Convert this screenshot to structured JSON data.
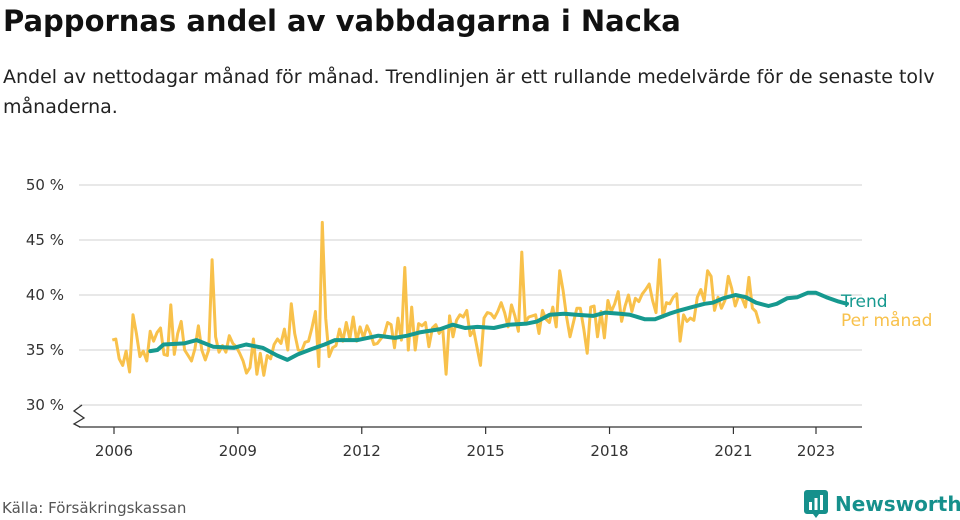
{
  "title": "Pappornas andel av vabbdagarna i Nacka",
  "subtitle": "Andel av nettodagar månad för månad. Trendlinjen är ett rullande medelvärde för de senaste tolv månaderna.",
  "source": "Källa: Försäkringskassan",
  "brand": {
    "name": "Newsworthy",
    "icon": "newsworthy-logo-icon",
    "color": "#16908c"
  },
  "chart_data": {
    "type": "line",
    "title": "Pappornas andel av vabbdagarna i Nacka",
    "y_ticks": [
      "30 %",
      "35 %",
      "40 %",
      "45 %",
      "50 %"
    ],
    "y_tick_values": [
      30,
      35,
      40,
      45,
      50
    ],
    "x_ticks": [
      "2006",
      "2009",
      "2012",
      "2015",
      "2018",
      "2021",
      "2023"
    ],
    "x_tick_values": [
      2006,
      2009,
      2012,
      2015,
      2018,
      2021,
      2023
    ],
    "ylim": [
      28.5,
      50
    ],
    "xlim": [
      2005.7,
      2024.2
    ],
    "y_axis_break": true,
    "grid": true,
    "legend": "inline labels at right end of lines",
    "colors": {
      "trend": "#16998f",
      "monthly": "#f8c14b",
      "grid": "#d9d9d9"
    },
    "series": [
      {
        "name": "Per månad",
        "color": "#f8c14b",
        "x_start": 2005.96,
        "step": 0.08333,
        "values": [
          35.9,
          36.0,
          34.2,
          33.6,
          34.9,
          33.0,
          38.2,
          36.5,
          34.4,
          34.9,
          34.0,
          36.7,
          35.8,
          36.6,
          37.0,
          34.6,
          34.5,
          39.1,
          34.6,
          36.5,
          37.6,
          35.0,
          34.5,
          34.0,
          35.1,
          37.2,
          35.0,
          34.1,
          35.0,
          43.2,
          36.2,
          34.8,
          35.4,
          34.8,
          36.3,
          35.6,
          35.3,
          34.7,
          34.0,
          32.9,
          33.4,
          36.0,
          32.8,
          34.7,
          32.7,
          34.5,
          34.2,
          35.5,
          36.0,
          35.6,
          36.9,
          35.0,
          39.2,
          36.5,
          35.0,
          34.9,
          35.7,
          35.8,
          37.0,
          38.5,
          33.5,
          46.6,
          37.9,
          34.4,
          35.2,
          35.4,
          36.9,
          35.8,
          37.5,
          36.0,
          38.0,
          35.8,
          37.1,
          36.1,
          37.2,
          36.5,
          35.5,
          35.6,
          36.0,
          36.4,
          37.5,
          37.3,
          35.2,
          37.9,
          35.9,
          42.5,
          35.0,
          38.9,
          35.0,
          37.4,
          37.2,
          37.5,
          35.3,
          37.0,
          37.3,
          36.5,
          37.0,
          32.8,
          38.1,
          36.2,
          37.7,
          38.2,
          38.0,
          38.6,
          36.3,
          36.8,
          35.2,
          33.6,
          37.9,
          38.4,
          38.3,
          37.9,
          38.5,
          39.3,
          38.4,
          37.1,
          39.1,
          38.1,
          36.7,
          43.9,
          37.5,
          38.0,
          38.1,
          38.2,
          36.5,
          38.6,
          37.8,
          37.5,
          38.9,
          37.1,
          42.2,
          40.4,
          38.0,
          36.2,
          37.5,
          38.8,
          38.8,
          36.9,
          34.7,
          38.9,
          39.0,
          36.2,
          38.5,
          36.1,
          39.5,
          38.5,
          39.2,
          40.3,
          37.6,
          39.0,
          40.0,
          38.5,
          39.7,
          39.4,
          40.1,
          40.5,
          41.0,
          39.5,
          38.4,
          43.2,
          38.0,
          39.3,
          39.2,
          39.8,
          40.1,
          35.8,
          38.2,
          37.6,
          37.9,
          37.7,
          39.8,
          40.5,
          39.5,
          42.2,
          41.7,
          38.6,
          39.8,
          38.8,
          39.5,
          41.7,
          40.6,
          39.0,
          39.9,
          39.7,
          38.9,
          41.6,
          38.8,
          38.5,
          37.4
        ]
      },
      {
        "name": "Trend",
        "color": "#16998f",
        "points": [
          [
            2006.88,
            34.9
          ],
          [
            2007.05,
            35.0
          ],
          [
            2007.2,
            35.5
          ],
          [
            2007.7,
            35.6
          ],
          [
            2008.0,
            35.9
          ],
          [
            2008.4,
            35.3
          ],
          [
            2008.9,
            35.2
          ],
          [
            2009.2,
            35.5
          ],
          [
            2009.6,
            35.2
          ],
          [
            2009.95,
            34.5
          ],
          [
            2010.2,
            34.1
          ],
          [
            2010.45,
            34.6
          ],
          [
            2010.8,
            35.1
          ],
          [
            2011.1,
            35.5
          ],
          [
            2011.35,
            35.9
          ],
          [
            2011.9,
            35.9
          ],
          [
            2012.4,
            36.3
          ],
          [
            2012.8,
            36.1
          ],
          [
            2013.1,
            36.3
          ],
          [
            2013.4,
            36.6
          ],
          [
            2013.9,
            36.9
          ],
          [
            2014.2,
            37.3
          ],
          [
            2014.5,
            37.0
          ],
          [
            2014.8,
            37.1
          ],
          [
            2015.2,
            37.0
          ],
          [
            2015.55,
            37.3
          ],
          [
            2016.0,
            37.4
          ],
          [
            2016.25,
            37.6
          ],
          [
            2016.55,
            38.2
          ],
          [
            2016.9,
            38.3
          ],
          [
            2017.2,
            38.2
          ],
          [
            2017.6,
            38.1
          ],
          [
            2017.9,
            38.4
          ],
          [
            2018.25,
            38.3
          ],
          [
            2018.5,
            38.2
          ],
          [
            2018.85,
            37.8
          ],
          [
            2019.1,
            37.8
          ],
          [
            2019.45,
            38.3
          ],
          [
            2019.7,
            38.6
          ],
          [
            2020.0,
            38.9
          ],
          [
            2020.3,
            39.2
          ],
          [
            2020.5,
            39.3
          ],
          [
            2020.75,
            39.7
          ],
          [
            2021.05,
            40.0
          ],
          [
            2021.3,
            39.8
          ],
          [
            2021.55,
            39.3
          ],
          [
            2021.85,
            39.0
          ],
          [
            2022.05,
            39.2
          ],
          [
            2022.3,
            39.7
          ],
          [
            2022.55,
            39.8
          ],
          [
            2022.8,
            40.2
          ],
          [
            2023.0,
            40.2
          ],
          [
            2023.25,
            39.8
          ],
          [
            2023.55,
            39.4
          ],
          [
            2023.75,
            39.2
          ]
        ]
      }
    ]
  }
}
